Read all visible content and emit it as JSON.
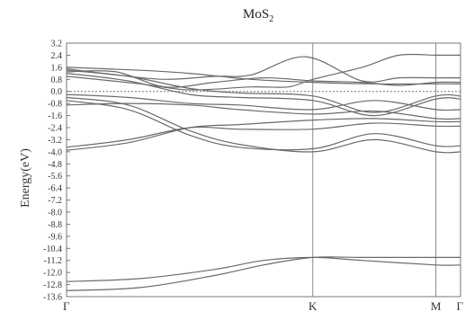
{
  "chart_data": {
    "type": "line",
    "title_main": "MoS",
    "title_sub": "2",
    "ylabel": "Energy(eV)",
    "ylim": [
      -13.6,
      3.2
    ],
    "yticks": [
      "3.2",
      "2.4",
      "1.6",
      "0.8",
      "0.0",
      "-0.8",
      "-1.6",
      "-2.4",
      "-3.2",
      "-4.0",
      "-4.8",
      "-5.6",
      "-6.4",
      "-7.2",
      "-8.0",
      "-8.8",
      "-9.6",
      "-10.4",
      "-11.2",
      "-12.0",
      "-12.8",
      "-13.6"
    ],
    "ytick_values": [
      3.2,
      2.4,
      1.6,
      0.8,
      0.0,
      -0.8,
      -1.6,
      -2.4,
      -3.2,
      -4.0,
      -4.8,
      -5.6,
      -6.4,
      -7.2,
      -8.0,
      -8.8,
      -9.6,
      -10.4,
      -11.2,
      -12.0,
      -12.8,
      -13.6
    ],
    "kpoints": [
      {
        "label": "Γ",
        "pos": 0.0
      },
      {
        "label": "K",
        "pos": 1.0
      },
      {
        "label": "M",
        "pos": 1.5
      },
      {
        "label": "Γ",
        "pos": 1.6
      }
    ],
    "fermi_level": 0.0,
    "grid": false,
    "series": [
      {
        "x": [
          0.0,
          0.3,
          0.6,
          0.8,
          1.0,
          1.2,
          1.5,
          1.6
        ],
        "y": [
          -13.2,
          -13.0,
          -12.2,
          -11.5,
          -11.0,
          -11.0,
          -11.0,
          -11.0
        ]
      },
      {
        "x": [
          0.0,
          0.3,
          0.6,
          0.8,
          1.0,
          1.2,
          1.5,
          1.6
        ],
        "y": [
          -12.6,
          -12.4,
          -11.8,
          -11.2,
          -11.0,
          -11.2,
          -11.5,
          -11.5
        ]
      },
      {
        "x": [
          0.0,
          0.25,
          0.5,
          0.7,
          1.0,
          1.25,
          1.5,
          1.6
        ],
        "y": [
          -3.9,
          -3.4,
          -2.4,
          -2.2,
          -1.9,
          -1.8,
          -2.0,
          -2.0
        ]
      },
      {
        "x": [
          0.0,
          0.25,
          0.5,
          0.7,
          1.0,
          1.25,
          1.5,
          1.6
        ],
        "y": [
          -3.7,
          -3.2,
          -2.4,
          -2.5,
          -2.5,
          -2.1,
          -2.3,
          -2.3
        ]
      },
      {
        "x": [
          0.0,
          0.25,
          0.5,
          0.7,
          1.0,
          1.25,
          1.5,
          1.6
        ],
        "y": [
          -0.4,
          -0.9,
          -2.6,
          -3.5,
          -4.0,
          -3.2,
          -4.0,
          -4.0
        ]
      },
      {
        "x": [
          0.0,
          0.25,
          0.5,
          0.7,
          1.0,
          1.25,
          1.5,
          1.6
        ],
        "y": [
          -0.6,
          -1.2,
          -2.9,
          -3.7,
          -3.8,
          -2.8,
          -3.6,
          -3.6
        ]
      },
      {
        "x": [
          0.0,
          0.25,
          0.5,
          0.7,
          1.0,
          1.25,
          1.5,
          1.6
        ],
        "y": [
          -0.9,
          -0.8,
          -0.9,
          -1.2,
          -1.5,
          -1.3,
          -1.8,
          -1.8
        ]
      },
      {
        "x": [
          0.0,
          0.25,
          0.5,
          0.7,
          1.0,
          1.25,
          1.5,
          1.6
        ],
        "y": [
          -0.2,
          -0.4,
          -0.8,
          -0.9,
          -1.2,
          -0.6,
          -1.2,
          -1.2
        ]
      },
      {
        "x": [
          0.0,
          0.25,
          0.5,
          0.7,
          1.0,
          1.25,
          1.5,
          1.6
        ],
        "y": [
          1.2,
          0.7,
          -0.2,
          -0.4,
          -0.6,
          -1.6,
          -0.5,
          -0.5
        ]
      },
      {
        "x": [
          0.0,
          0.25,
          0.5,
          0.7,
          1.0,
          1.25,
          1.5,
          1.6
        ],
        "y": [
          1.4,
          1.0,
          0.2,
          -0.1,
          -0.3,
          -1.4,
          -0.3,
          -0.3
        ]
      },
      {
        "x": [
          0.0,
          0.2,
          0.4,
          0.6,
          0.8,
          1.0,
          1.2,
          1.35,
          1.5,
          1.6
        ],
        "y": [
          1.3,
          1.3,
          0.3,
          0.6,
          0.9,
          0.7,
          0.6,
          0.4,
          0.6,
          0.6
        ]
      },
      {
        "x": [
          0.0,
          0.2,
          0.4,
          0.6,
          0.75,
          0.97,
          1.2,
          1.35,
          1.5,
          1.6
        ],
        "y": [
          1.5,
          1.1,
          0.8,
          1.0,
          1.1,
          2.3,
          0.7,
          0.9,
          0.9,
          0.9
        ]
      },
      {
        "x": [
          0.0,
          0.3,
          0.5,
          0.75,
          0.9,
          1.0,
          1.2,
          1.35,
          1.5,
          1.6
        ],
        "y": [
          1.0,
          0.5,
          0.1,
          0.3,
          0.3,
          0.8,
          1.6,
          2.4,
          2.4,
          2.4
        ]
      },
      {
        "x": [
          0.0,
          0.3,
          0.5,
          0.75,
          1.0,
          1.25,
          1.5,
          1.6
        ],
        "y": [
          1.6,
          1.4,
          1.2,
          0.8,
          0.6,
          0.5,
          0.5,
          0.5
        ]
      }
    ]
  }
}
